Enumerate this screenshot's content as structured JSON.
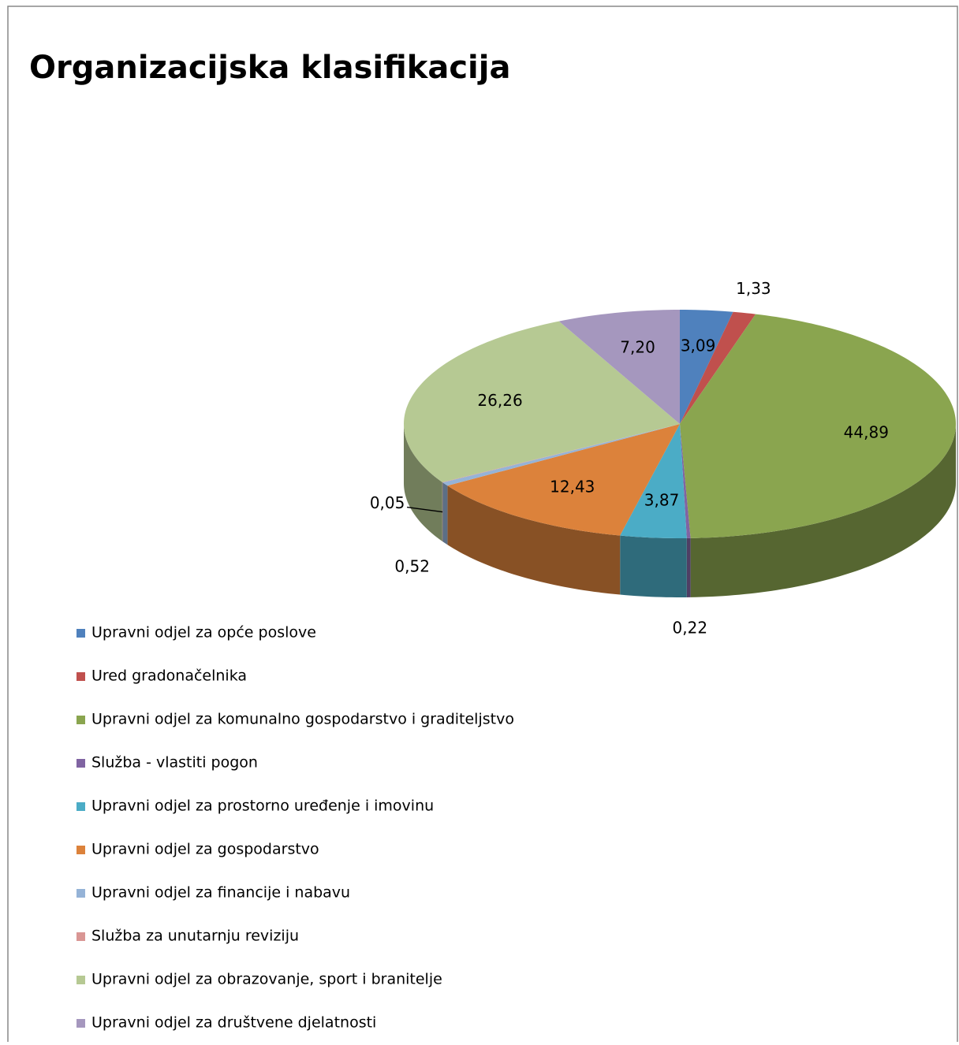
{
  "chart_data": {
    "type": "pie3d",
    "title": "Organizacijska klasifikacija",
    "categories": [
      "Upravni odjel za opće poslove",
      "Ured gradonačelnika",
      "Upravni odjel za komunalno gospodarstvo i graditeljstvo",
      "Služba - vlastiti pogon",
      "Upravni odjel za prostorno uređenje i imovinu",
      "Upravni odjel za gospodarstvo",
      "Upravni odjel za financije i nabavu",
      "Služba za unutarnju reviziju",
      "Upravni odjel za obrazovanje, sport i branitelje",
      "Upravni odjel za društvene djelatnosti"
    ],
    "values": [
      3.09,
      1.33,
      44.89,
      0.22,
      3.87,
      12.43,
      0.52,
      0.05,
      26.26,
      7.2
    ],
    "value_labels": [
      "3,09",
      "1,33",
      "44,89",
      "0,22",
      "3,87",
      "12,43",
      "0,52",
      "0,05",
      "26,26",
      "7,20"
    ],
    "colors": [
      "#4f81bd",
      "#c0504d",
      "#8aa54f",
      "#8064a2",
      "#4bacc6",
      "#dc823b",
      "#95b3d7",
      "#d99694",
      "#b6c993",
      "#a597be"
    ],
    "legend": "bottom-left"
  }
}
